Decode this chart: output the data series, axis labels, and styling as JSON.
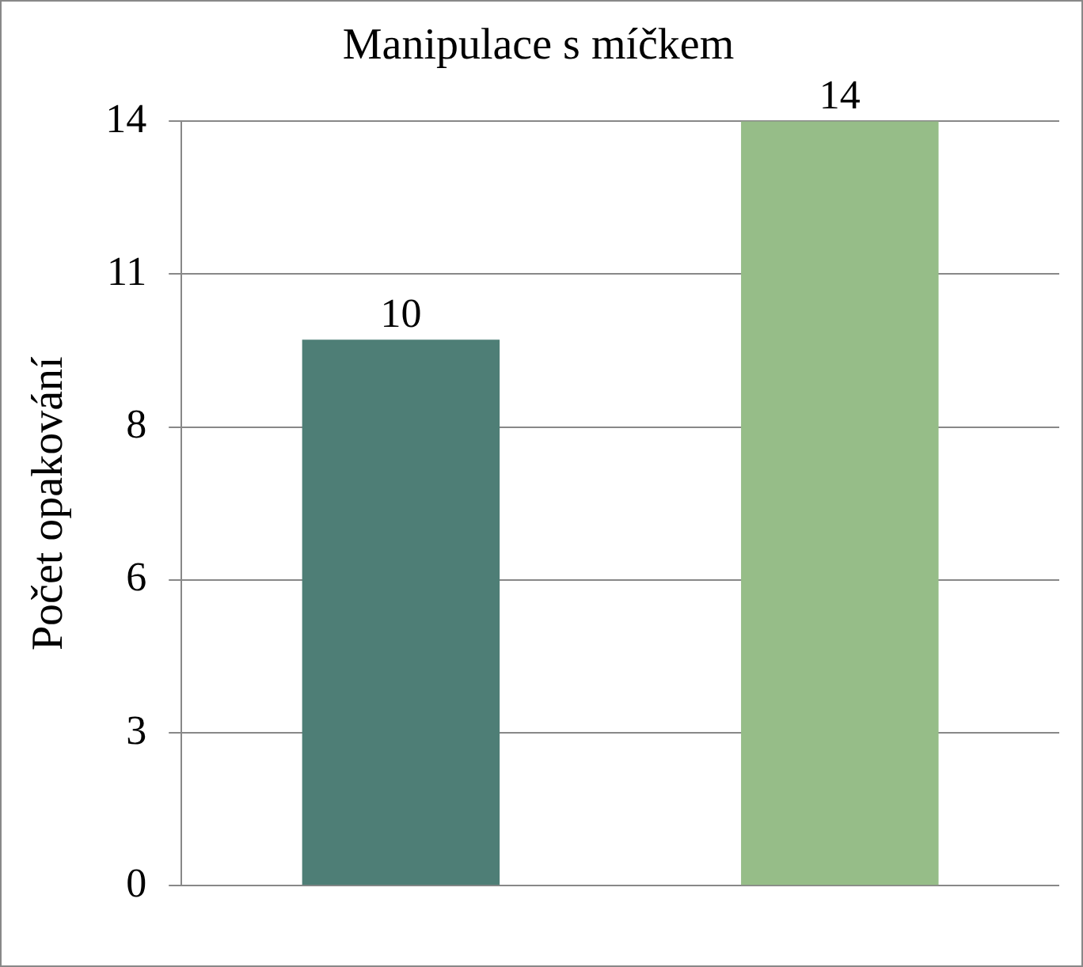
{
  "chart_data": {
    "type": "bar",
    "title": "Manipulace s míčkem",
    "ylabel": "Počet opakování",
    "categories": [
      null,
      null
    ],
    "values": [
      10,
      14
    ],
    "colors": [
      "#4e7e76",
      "#96bd88"
    ],
    "ylim": [
      0,
      14
    ],
    "yticks": [
      0,
      {
        "value": 2.8,
        "label": "3"
      },
      {
        "value": 5.6,
        "label": "6"
      },
      {
        "value": 8.4,
        "label": "8"
      },
      {
        "value": 11.2,
        "label": "11"
      },
      14
    ],
    "grid": "y",
    "legend": false,
    "data_labels": true
  }
}
